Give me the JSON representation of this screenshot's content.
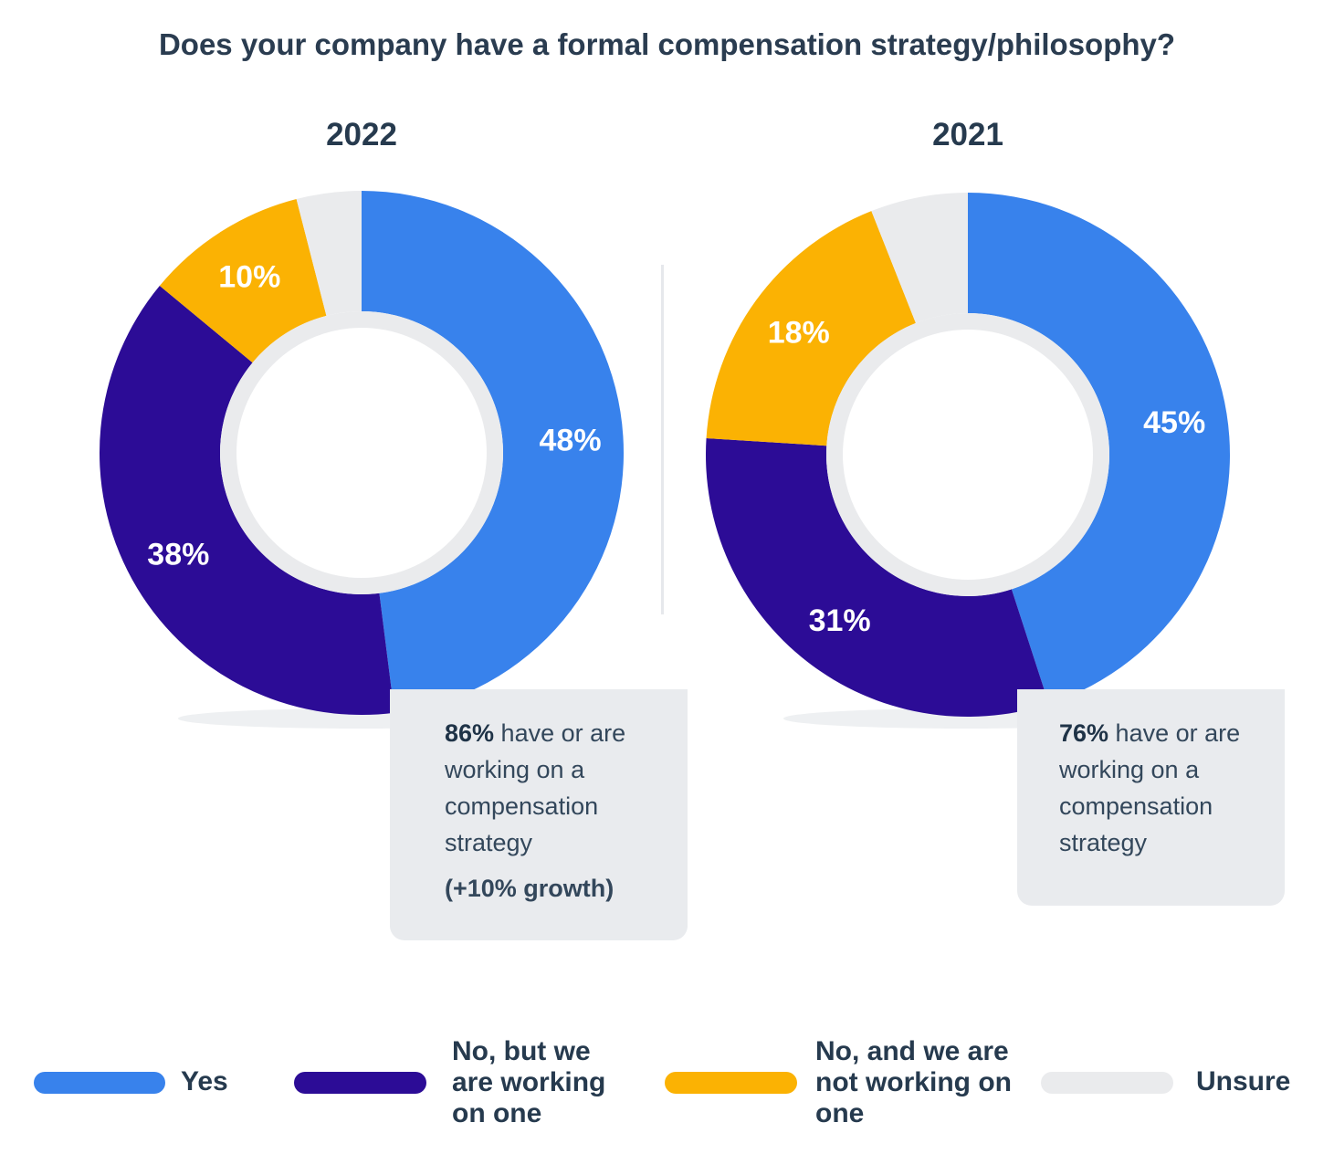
{
  "title": "Does your company have a formal compensation strategy/philosophy?",
  "colors": {
    "yes": "#3882ec",
    "working": "#2c0c96",
    "not_working": "#fbb203",
    "unsure": "#eaebed"
  },
  "chart_data": [
    {
      "type": "pie",
      "title": "2022",
      "categories": [
        "Yes",
        "No, but we are working on one",
        "No, and we are not working on one",
        "Unsure"
      ],
      "values": [
        48,
        38,
        10,
        4
      ],
      "value_labels": [
        "48%",
        "38%",
        "10%",
        ""
      ],
      "callout": {
        "highlight": "86%",
        "text": " have or are working on a compensation strategy",
        "growth": "(+10% growth)"
      }
    },
    {
      "type": "pie",
      "title": "2021",
      "categories": [
        "Yes",
        "No, but we are working on one",
        "No, and we are not working on one",
        "Unsure"
      ],
      "values": [
        45,
        31,
        18,
        6
      ],
      "value_labels": [
        "45%",
        "31%",
        "18%",
        ""
      ],
      "callout": {
        "highlight": "76%",
        "text": " have or are working on a compensation strategy"
      }
    }
  ],
  "legend": [
    {
      "label": "Yes",
      "color": "#3882ec"
    },
    {
      "label": "No, but we are working on one",
      "color": "#2c0c96"
    },
    {
      "label": "No, and we are not working on one",
      "color": "#fbb203"
    },
    {
      "label": "Unsure",
      "color": "#eaebed"
    }
  ]
}
